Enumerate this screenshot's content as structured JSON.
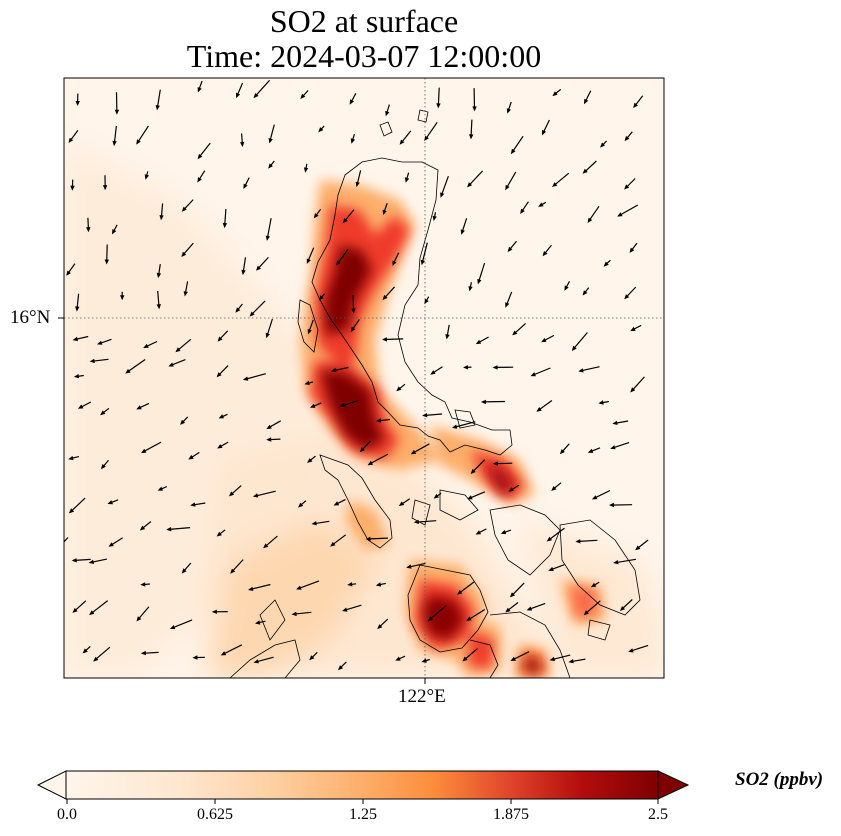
{
  "title": {
    "line1": "SO2 at surface",
    "line2": "Time: 2024-03-07 12:00:00"
  },
  "map": {
    "lat_label": "16°N",
    "lon_label": "122°E",
    "colormap": [
      "#fff5eb",
      "#fee6ce",
      "#fdd0a2",
      "#fdae6b",
      "#fd8d3c",
      "#f16913",
      "#d94801",
      "#a50f15",
      "#7f0000"
    ],
    "coastline_color": "#000000",
    "gridline_style": "dotted"
  },
  "colorbar": {
    "label": "SO2 (ppbv)",
    "min": 0.0,
    "max": 2.5,
    "ticks": [
      "0.0",
      "0.625",
      "1.25",
      "1.875",
      "2.5"
    ],
    "extend": "both"
  }
}
